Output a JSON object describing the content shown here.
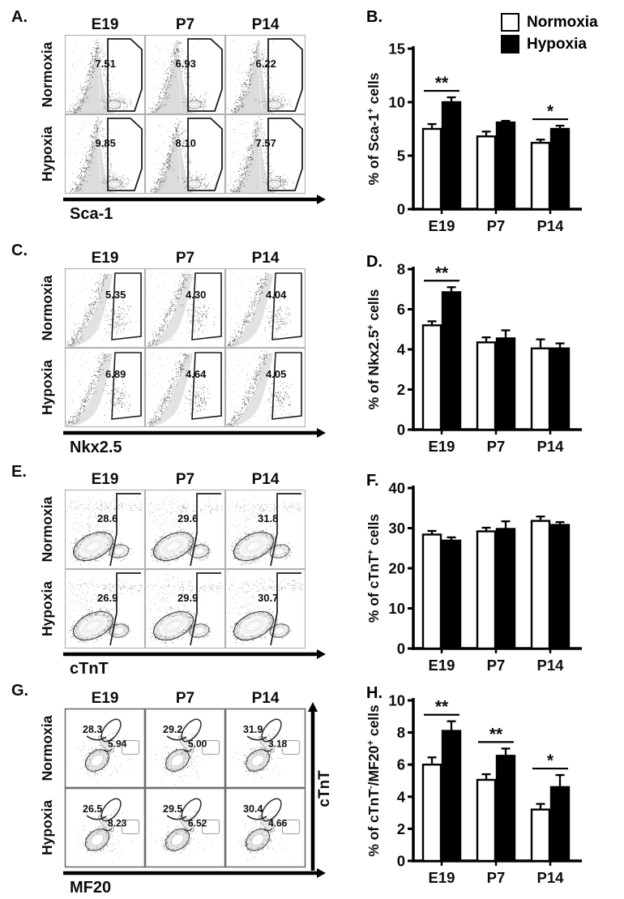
{
  "legend": {
    "items": [
      {
        "label": "Normoxia",
        "fill": "#ffffff"
      },
      {
        "label": "Hypoxia",
        "fill": "#000000"
      }
    ]
  },
  "flow_panels": [
    {
      "label": "A.",
      "type": "spike",
      "xlabel": "Sca-1",
      "col_headers": [
        "E19",
        "P7",
        "P14"
      ],
      "rows": [
        {
          "name": "Normoxia",
          "values": [
            [
              "7.51"
            ],
            [
              "6.93"
            ],
            [
              "6.22"
            ]
          ]
        },
        {
          "name": "Hypoxia",
          "values": [
            [
              "9.85"
            ],
            [
              "8.10"
            ],
            [
              "7.57"
            ]
          ]
        }
      ]
    },
    {
      "label": "C.",
      "type": "jcurve",
      "xlabel": "Nkx2.5",
      "col_headers": [
        "E19",
        "P7",
        "P14"
      ],
      "rows": [
        {
          "name": "Normoxia",
          "values": [
            [
              "5.35"
            ],
            [
              "4.30"
            ],
            [
              "4.04"
            ]
          ]
        },
        {
          "name": "Hypoxia",
          "values": [
            [
              "6.89"
            ],
            [
              "4.64"
            ],
            [
              "4.05"
            ]
          ]
        }
      ]
    },
    {
      "label": "E.",
      "type": "bean",
      "xlabel": "cTnT",
      "col_headers": [
        "E19",
        "P7",
        "P14"
      ],
      "rows": [
        {
          "name": "Normoxia",
          "values": [
            [
              "28.6"
            ],
            [
              "29.6"
            ],
            [
              "31.8"
            ]
          ]
        },
        {
          "name": "Hypoxia",
          "values": [
            [
              "26.9"
            ],
            [
              "29.9"
            ],
            [
              "30.7"
            ]
          ]
        }
      ]
    },
    {
      "label": "G.",
      "type": "dual",
      "xlabel": "MF20",
      "ylabel": "cTnT",
      "col_headers": [
        "E19",
        "P7",
        "P14"
      ],
      "rows": [
        {
          "name": "Normoxia",
          "values": [
            [
              "28.3",
              "5.94"
            ],
            [
              "29.2",
              "5.00"
            ],
            [
              "31.9",
              "3.18"
            ]
          ]
        },
        {
          "name": "Hypoxia",
          "values": [
            [
              "26.5",
              "8.23"
            ],
            [
              "29.5",
              "6.52"
            ],
            [
              "30.4",
              "4.66"
            ]
          ]
        }
      ]
    }
  ],
  "chart_data": [
    {
      "label": "B.",
      "type": "bar",
      "categories": [
        "E19",
        "P7",
        "P14"
      ],
      "series": [
        {
          "name": "Normoxia",
          "fill": "#ffffff",
          "values": [
            7.5,
            6.8,
            6.2
          ],
          "errors": [
            0.45,
            0.45,
            0.3
          ]
        },
        {
          "name": "Hypoxia",
          "fill": "#000000",
          "values": [
            10.0,
            8.1,
            7.5
          ],
          "errors": [
            0.45,
            0.15,
            0.3
          ]
        }
      ],
      "ylabel_parts": [
        {
          "t": "% of Sca-1"
        },
        {
          "t": "+",
          "sup": true
        },
        {
          "t": " cells"
        }
      ],
      "ylim": [
        0,
        15
      ],
      "yticks": [
        0,
        5,
        10,
        15
      ],
      "sig": [
        {
          "group": 0,
          "label": "**"
        },
        {
          "group": 2,
          "label": "*"
        }
      ],
      "legend_position": "top-right"
    },
    {
      "label": "D.",
      "type": "bar",
      "categories": [
        "E19",
        "P7",
        "P14"
      ],
      "series": [
        {
          "name": "Normoxia",
          "fill": "#ffffff",
          "values": [
            5.2,
            4.35,
            4.05
          ],
          "errors": [
            0.2,
            0.25,
            0.45
          ]
        },
        {
          "name": "Hypoxia",
          "fill": "#000000",
          "values": [
            6.85,
            4.55,
            4.05
          ],
          "errors": [
            0.25,
            0.4,
            0.25
          ]
        }
      ],
      "ylabel_parts": [
        {
          "t": "% of Nkx2.5"
        },
        {
          "t": "+",
          "sup": true
        },
        {
          "t": " cells"
        }
      ],
      "ylim": [
        0,
        8
      ],
      "yticks": [
        0,
        2,
        4,
        6,
        8
      ],
      "sig": [
        {
          "group": 0,
          "label": "**"
        }
      ]
    },
    {
      "label": "F.",
      "type": "bar",
      "categories": [
        "E19",
        "P7",
        "P14"
      ],
      "series": [
        {
          "name": "Normoxia",
          "fill": "#ffffff",
          "values": [
            28.4,
            29.2,
            31.8
          ],
          "errors": [
            0.9,
            0.9,
            1.1
          ]
        },
        {
          "name": "Hypoxia",
          "fill": "#000000",
          "values": [
            26.9,
            29.8,
            30.8
          ],
          "errors": [
            0.8,
            1.9,
            0.7
          ]
        }
      ],
      "ylabel_parts": [
        {
          "t": "% of cTnT"
        },
        {
          "t": "+",
          "sup": true
        },
        {
          "t": " cells"
        }
      ],
      "ylim": [
        0,
        40
      ],
      "yticks": [
        0,
        10,
        20,
        30,
        40
      ],
      "sig": []
    },
    {
      "label": "H.",
      "type": "bar",
      "categories": [
        "E19",
        "P7",
        "P14"
      ],
      "series": [
        {
          "name": "Normoxia",
          "fill": "#ffffff",
          "values": [
            6.0,
            5.05,
            3.2
          ],
          "errors": [
            0.45,
            0.35,
            0.35
          ]
        },
        {
          "name": "Hypoxia",
          "fill": "#000000",
          "values": [
            8.1,
            6.55,
            4.6
          ],
          "errors": [
            0.6,
            0.45,
            0.75
          ]
        }
      ],
      "ylabel_parts": [
        {
          "t": "% of cTnT"
        },
        {
          "t": "-",
          "sup": true
        },
        {
          "t": "/MF20"
        },
        {
          "t": "+",
          "sup": true
        },
        {
          "t": " cells"
        }
      ],
      "ylim": [
        0,
        10
      ],
      "yticks": [
        0,
        2,
        4,
        6,
        8,
        10
      ],
      "sig": [
        {
          "group": 0,
          "label": "**"
        },
        {
          "group": 1,
          "label": "**"
        },
        {
          "group": 2,
          "label": "*"
        }
      ]
    }
  ]
}
